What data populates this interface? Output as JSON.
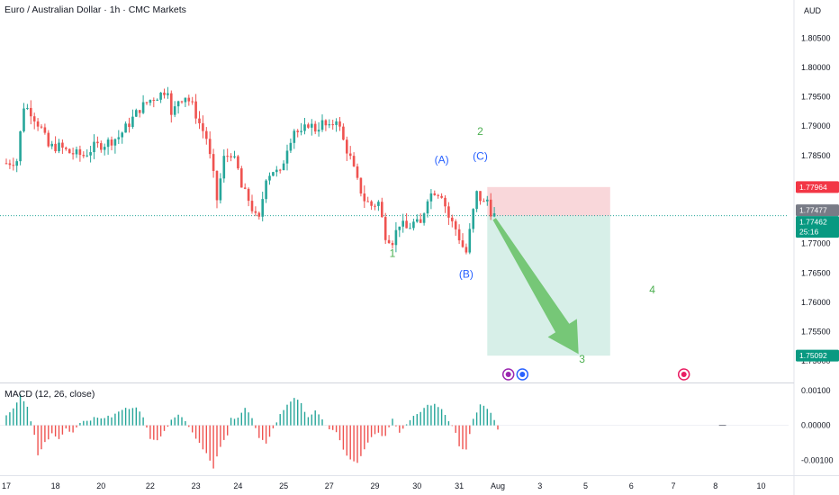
{
  "header": {
    "title": "Euro / Australian Dollar · 1h · CMC Markets",
    "currency": "AUD"
  },
  "macd": {
    "title": "MACD (12, 26, close)"
  },
  "colors": {
    "up": "#26a69a",
    "down": "#ef5350",
    "hist_up": "#26a69a",
    "hist_down": "#ef5350",
    "stop_zone": "#f7c9cd",
    "target_zone": "#cdebe2",
    "arrow": "#6cc26a",
    "wave_green": "#4caf50",
    "wave_blue": "#2962ff",
    "stop_tag": "#f23645",
    "last_tag": "#787b86",
    "price_tag": "#089981",
    "target_tag": "#089981"
  },
  "chart_data": {
    "type": "candlestick",
    "price_axis": {
      "ticks": [
        "1.80500",
        "1.80000",
        "1.79500",
        "1.79000",
        "1.78500",
        "1.77000",
        "1.76500",
        "1.76000",
        "1.75500",
        "1.75000"
      ],
      "tick_values": [
        1.805,
        1.8,
        1.795,
        1.79,
        1.785,
        1.77,
        1.765,
        1.76,
        1.755,
        1.75
      ],
      "range": [
        1.7465,
        1.8115
      ]
    },
    "macd_axis": {
      "ticks": [
        "0.00100",
        "0.00000",
        "-0.00100"
      ],
      "tick_values": [
        0.001,
        0.0,
        -0.001
      ],
      "range": [
        -0.0014,
        0.0012
      ]
    },
    "x_axis": {
      "labels": [
        "17",
        "18",
        "20",
        "22",
        "23",
        "24",
        "25",
        "27",
        "29",
        "30",
        "31",
        "Aug",
        "3",
        "5",
        "6",
        "7",
        "8",
        "10"
      ],
      "label_index": [
        0,
        14,
        27,
        41,
        54,
        66,
        79,
        92,
        105,
        117,
        129,
        140,
        152,
        165,
        178,
        190,
        202,
        215
      ]
    },
    "price_tags": [
      {
        "label": "1.77964",
        "value": 1.77964,
        "kind": "stop"
      },
      {
        "label": "1.77477",
        "value": 1.77477,
        "kind": "last"
      },
      {
        "label": "1.77462",
        "value": 1.77462,
        "kind": "price"
      },
      {
        "label": "25:16",
        "value": 1.77462,
        "kind": "countdown"
      },
      {
        "label": "1.75092",
        "value": 1.75092,
        "kind": "target"
      }
    ],
    "position": {
      "entry": 1.7747,
      "stop": 1.77964,
      "target": 1.75092,
      "start_index": 137,
      "end_index": 172
    },
    "current_price": 1.77477,
    "waves": [
      {
        "label": "1",
        "index": 110,
        "price": 1.7677,
        "color": "green"
      },
      {
        "label": "(A)",
        "index": 124,
        "price": 1.7837,
        "color": "blue"
      },
      {
        "label": "(B)",
        "index": 131,
        "price": 1.7642,
        "color": "blue"
      },
      {
        "label": "(C)",
        "index": 135,
        "price": 1.7843,
        "color": "blue"
      },
      {
        "label": "2",
        "index": 135,
        "price": 1.7885,
        "color": "green"
      },
      {
        "label": "3",
        "index": 164,
        "price": 1.7497,
        "color": "green"
      },
      {
        "label": "4",
        "index": 184,
        "price": 1.7615,
        "color": "green"
      }
    ],
    "close_anchors": [
      [
        0,
        1.7837
      ],
      [
        3,
        1.7842
      ],
      [
        5,
        1.7935
      ],
      [
        7,
        1.7925
      ],
      [
        10,
        1.7895
      ],
      [
        12,
        1.7865
      ],
      [
        15,
        1.7865
      ],
      [
        18,
        1.7855
      ],
      [
        22,
        1.785
      ],
      [
        25,
        1.7865
      ],
      [
        28,
        1.787
      ],
      [
        32,
        1.7882
      ],
      [
        35,
        1.7905
      ],
      [
        38,
        1.793
      ],
      [
        41,
        1.7945
      ],
      [
        44,
        1.7955
      ],
      [
        46,
        1.7965
      ],
      [
        47,
        1.7915
      ],
      [
        49,
        1.7945
      ],
      [
        51,
        1.7952
      ],
      [
        53,
        1.7935
      ],
      [
        55,
        1.7905
      ],
      [
        57,
        1.788
      ],
      [
        59,
        1.7815
      ],
      [
        60,
        1.7775
      ],
      [
        62,
        1.7845
      ],
      [
        64,
        1.7855
      ],
      [
        66,
        1.7825
      ],
      [
        67,
        1.7795
      ],
      [
        69,
        1.7775
      ],
      [
        71,
        1.7745
      ],
      [
        72,
        1.774
      ],
      [
        74,
        1.7815
      ],
      [
        76,
        1.7825
      ],
      [
        78,
        1.7818
      ],
      [
        80,
        1.7865
      ],
      [
        82,
        1.7895
      ],
      [
        84,
        1.7885
      ],
      [
        86,
        1.7905
      ],
      [
        88,
        1.7895
      ],
      [
        90,
        1.7905
      ],
      [
        92,
        1.7895
      ],
      [
        94,
        1.7915
      ],
      [
        96,
        1.7875
      ],
      [
        98,
        1.7845
      ],
      [
        100,
        1.7805
      ],
      [
        102,
        1.7775
      ],
      [
        104,
        1.7765
      ],
      [
        106,
        1.777
      ],
      [
        108,
        1.7715
      ],
      [
        110,
        1.7705
      ],
      [
        112,
        1.7735
      ],
      [
        114,
        1.7725
      ],
      [
        116,
        1.7735
      ],
      [
        118,
        1.7732
      ],
      [
        120,
        1.778
      ],
      [
        122,
        1.779
      ],
      [
        124,
        1.7785
      ],
      [
        126,
        1.7745
      ],
      [
        128,
        1.7725
      ],
      [
        130,
        1.7695
      ],
      [
        131,
        1.7685
      ],
      [
        133,
        1.7755
      ],
      [
        134,
        1.7785
      ],
      [
        136,
        1.7768
      ],
      [
        137,
        1.7775
      ],
      [
        138,
        1.7755
      ],
      [
        139,
        1.7748
      ]
    ],
    "macd_hist_anchors": [
      [
        0,
        0.00025
      ],
      [
        2,
        0.00045
      ],
      [
        4,
        0.0009
      ],
      [
        6,
        0.0005
      ],
      [
        8,
        -0.0003
      ],
      [
        9,
        -0.00085
      ],
      [
        11,
        -0.0005
      ],
      [
        13,
        -0.00025
      ],
      [
        15,
        -0.0004
      ],
      [
        17,
        -0.0001
      ],
      [
        19,
        -0.0002
      ],
      [
        21,
        0.0001
      ],
      [
        25,
        0.0002
      ],
      [
        30,
        0.00025
      ],
      [
        33,
        0.00045
      ],
      [
        37,
        0.00055
      ],
      [
        39,
        0.0002
      ],
      [
        41,
        -0.00035
      ],
      [
        43,
        -0.0004
      ],
      [
        45,
        -0.0002
      ],
      [
        47,
        0.0002
      ],
      [
        49,
        0.0003
      ],
      [
        51,
        0.00015
      ],
      [
        53,
        -0.0002
      ],
      [
        55,
        -0.0005
      ],
      [
        57,
        -0.0008
      ],
      [
        59,
        -0.00125
      ],
      [
        61,
        -0.0006
      ],
      [
        63,
        -0.0003
      ],
      [
        64,
        0.0002
      ],
      [
        66,
        0.00025
      ],
      [
        68,
        0.0005
      ],
      [
        70,
        0.0002
      ],
      [
        72,
        -0.0004
      ],
      [
        74,
        -0.0005
      ],
      [
        76,
        -0.0001
      ],
      [
        78,
        0.0003
      ],
      [
        80,
        0.0006
      ],
      [
        82,
        0.0008
      ],
      [
        84,
        0.0006
      ],
      [
        86,
        0.00025
      ],
      [
        88,
        0.0004
      ],
      [
        90,
        0.00015
      ],
      [
        92,
        -0.0001
      ],
      [
        94,
        -0.0002
      ],
      [
        96,
        -0.0007
      ],
      [
        98,
        -0.001
      ],
      [
        100,
        -0.0011
      ],
      [
        102,
        -0.0007
      ],
      [
        104,
        -0.0003
      ],
      [
        106,
        -0.00025
      ],
      [
        108,
        -0.0003
      ],
      [
        110,
        0.0002
      ],
      [
        112,
        -0.0002
      ],
      [
        114,
        5e-05
      ],
      [
        116,
        0.0003
      ],
      [
        118,
        0.0004
      ],
      [
        120,
        0.0006
      ],
      [
        122,
        0.0006
      ],
      [
        124,
        0.0005
      ],
      [
        126,
        0.00015
      ],
      [
        128,
        -0.0002
      ],
      [
        129,
        -0.0006
      ],
      [
        131,
        -0.0007
      ],
      [
        133,
        0.00015
      ],
      [
        135,
        0.0006
      ],
      [
        137,
        0.0005
      ],
      [
        139,
        0.00015
      ],
      [
        140,
        -0.0001
      ]
    ]
  }
}
